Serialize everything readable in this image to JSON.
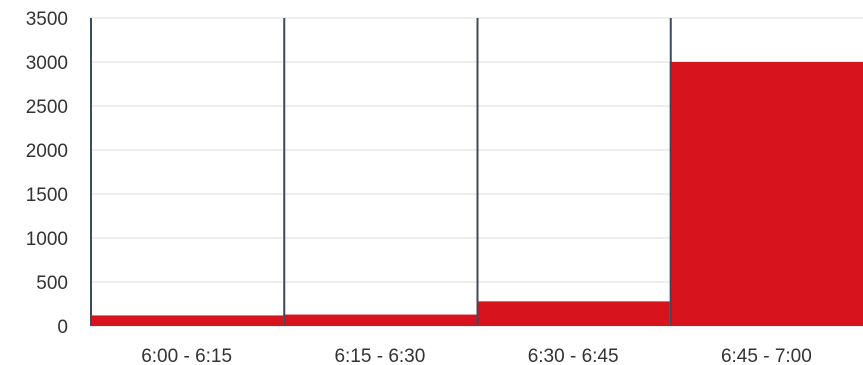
{
  "chart_data": {
    "type": "bar",
    "categories": [
      "6:00 - 6:15",
      "6:15 - 6:30",
      "6:30 - 6:45",
      "6:45 - 7:00"
    ],
    "values": [
      120,
      130,
      280,
      3000
    ],
    "title": "",
    "xlabel": "",
    "ylabel": "",
    "ylim": [
      0,
      3500
    ],
    "yticks": [
      0,
      500,
      1000,
      1500,
      2000,
      2500,
      3000,
      3500
    ],
    "grid": true,
    "bar_color": "#d7141e",
    "gridline_color": "#dddddd",
    "separator_color": "#3c4a59"
  }
}
